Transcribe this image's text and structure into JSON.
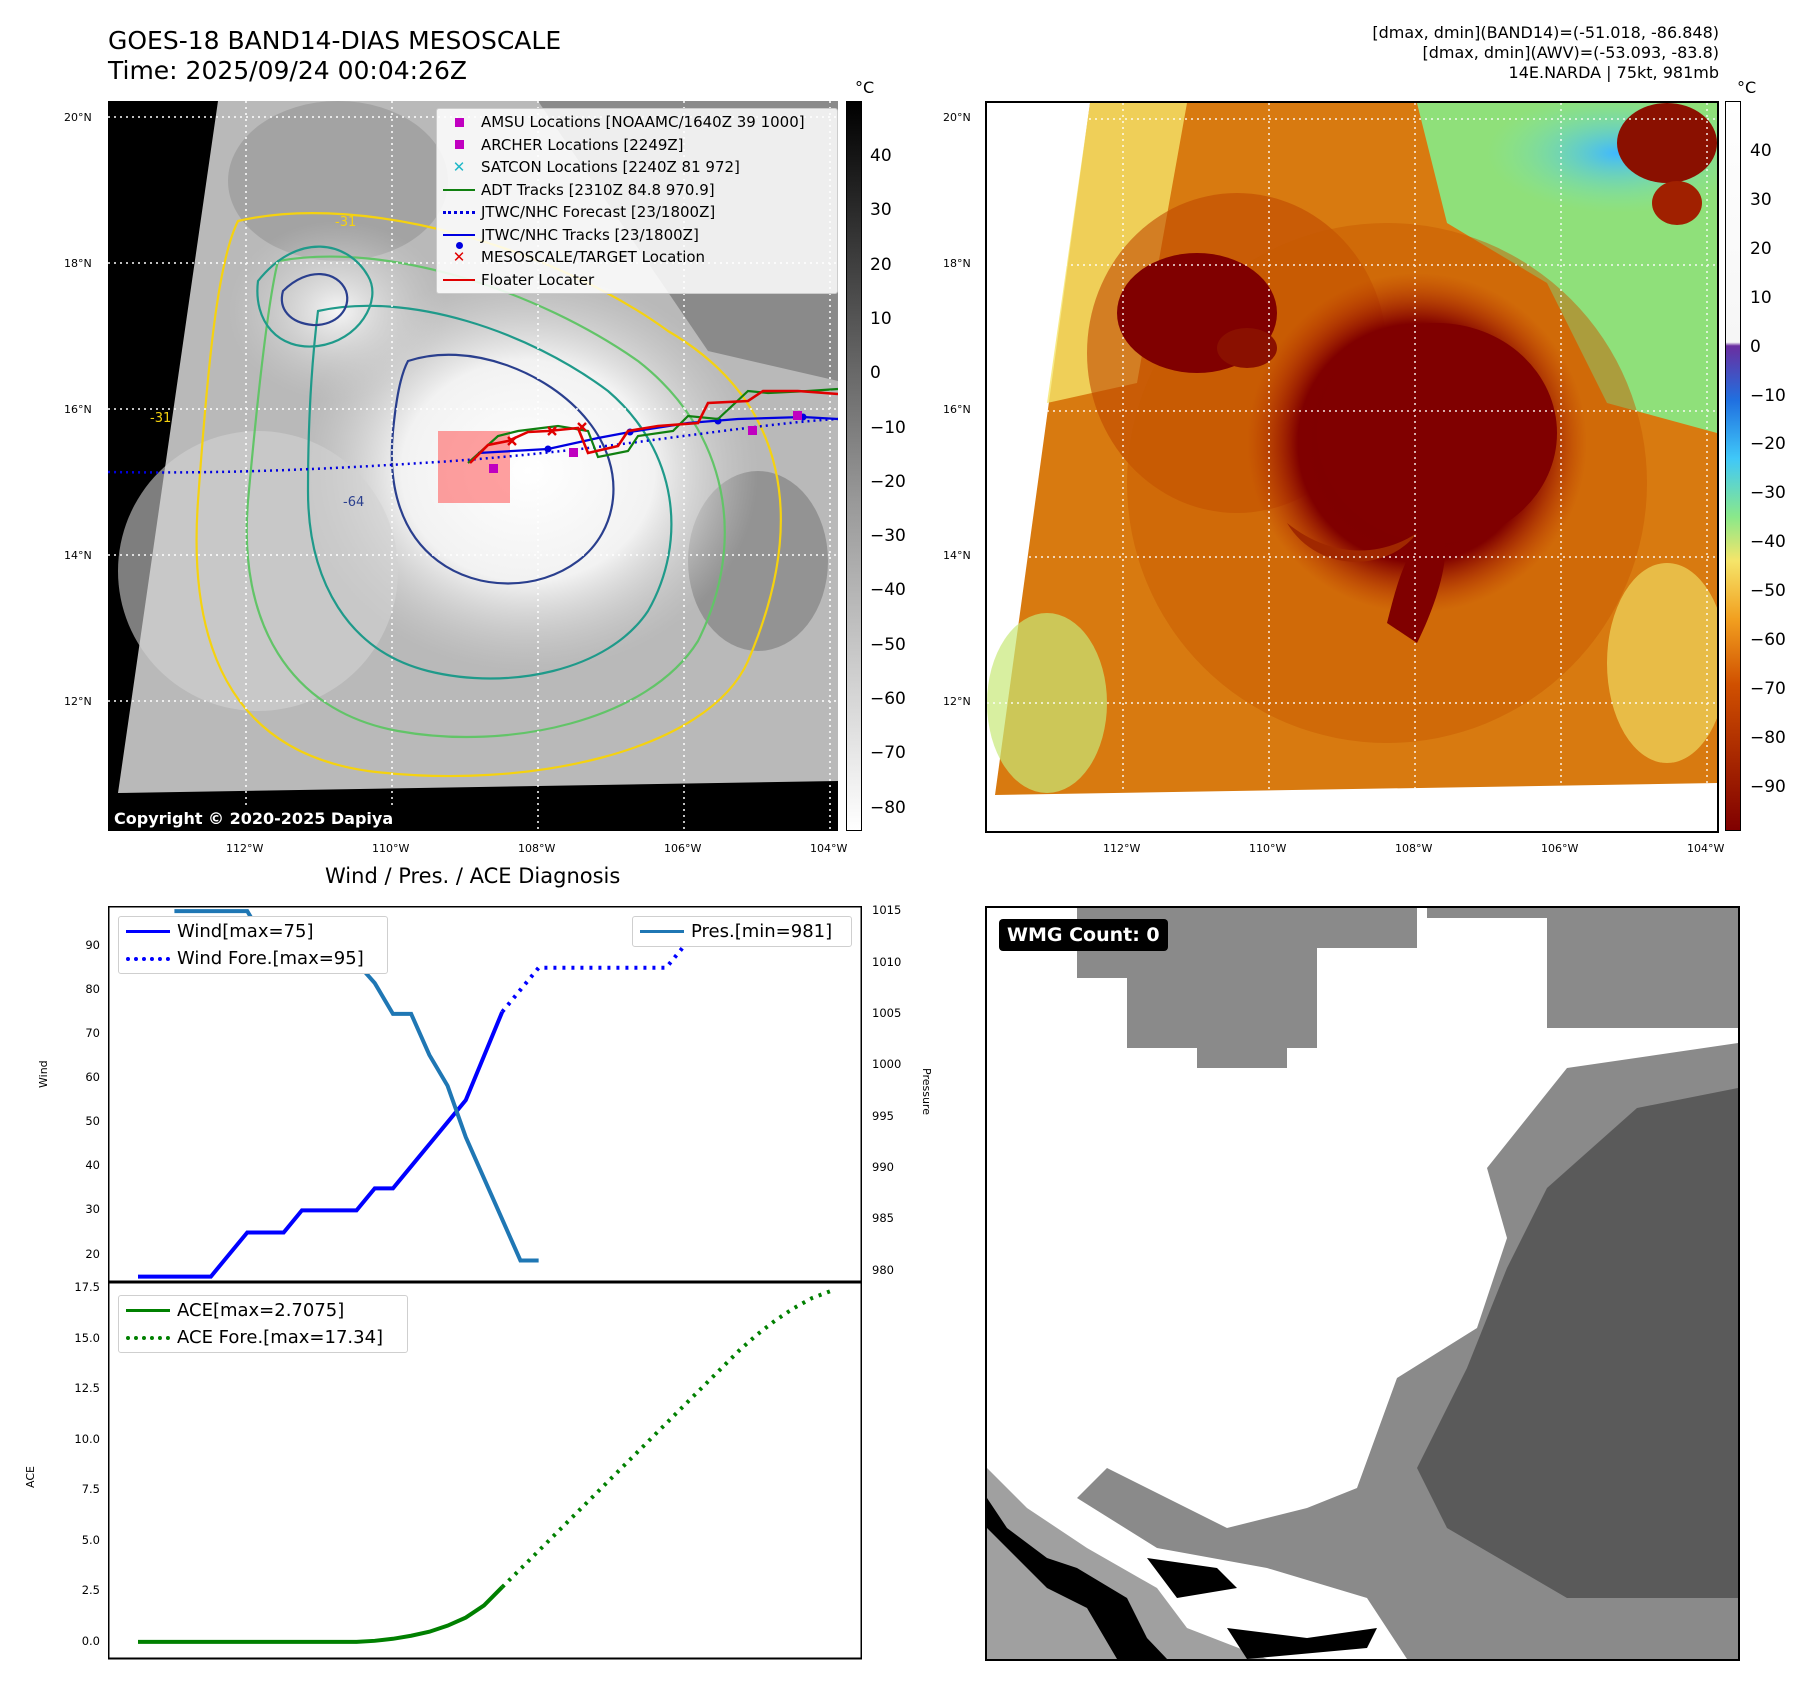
{
  "header": {
    "title_line1": "GOES-18 BAND14-DIAS MESOSCALE",
    "title_line2": "Time: 2025/09/24 00:04:26Z",
    "info_line1": "[dmax, dmin](BAND14)=(-51.018, -86.848)",
    "info_line2": "[dmax, dmin](AWV)=(-53.093, -83.8)",
    "info_line3": "14E.NARDA | 75kt, 981mb"
  },
  "map": {
    "lat_labels": [
      "20°N",
      "18°N",
      "16°N",
      "14°N",
      "12°N"
    ],
    "lon_labels": [
      "112°W",
      "110°W",
      "108°W",
      "106°W",
      "104°W"
    ],
    "copyright": "Copyright © 2020-2025 Dapiya",
    "legend": [
      {
        "label": "AMSU Locations [NOAAMC/1640Z 39 1000]",
        "symbol": "square",
        "color": "#c000c0"
      },
      {
        "label": "ARCHER Locations [2249Z]",
        "symbol": "square",
        "color": "#c000c0"
      },
      {
        "label": "SATCON Locations [2240Z 81 972]",
        "symbol": "x",
        "color": "#20b8c8"
      },
      {
        "label": "ADT Tracks [2310Z 84.8 970.9]",
        "symbol": "line",
        "color": "#108010"
      },
      {
        "label": "JTWC/NHC Forecast [23/1800Z]",
        "symbol": "dotted",
        "color": "#0000e0"
      },
      {
        "label": "JTWC/NHC Tracks [23/1800Z]",
        "symbol": "line-dot",
        "color": "#0000e0"
      },
      {
        "label": "MESOSCALE/TARGET Location",
        "symbol": "x",
        "color": "#e00000"
      },
      {
        "label": "Floater Locater",
        "symbol": "line",
        "color": "#e00000"
      }
    ],
    "contour_labels": [
      "-31",
      "-64",
      "-31"
    ]
  },
  "colorbar_gray": {
    "unit": "°C",
    "ticks": [
      "40",
      "30",
      "20",
      "10",
      "0",
      "−10",
      "−20",
      "−30",
      "−40",
      "−50",
      "−60",
      "−70",
      "−80"
    ]
  },
  "colorbar_color": {
    "unit": "°C",
    "ticks": [
      "40",
      "30",
      "20",
      "10",
      "0",
      "−10",
      "−20",
      "−30",
      "−40",
      "−50",
      "−60",
      "−70",
      "−80",
      "−90"
    ]
  },
  "diag": {
    "title": "Wind / Pres. / ACE Diagnosis",
    "wind_ylabel": "Wind",
    "pres_ylabel": "Pressure",
    "ace_ylabel": "ACE",
    "wind_ticks": [
      "90",
      "80",
      "70",
      "60",
      "50",
      "40",
      "30",
      "20"
    ],
    "pres_ticks": [
      "1015",
      "1010",
      "1005",
      "1000",
      "995",
      "990",
      "985",
      "980"
    ],
    "ace_ticks": [
      "17.5",
      "15.0",
      "12.5",
      "10.0",
      "7.5",
      "5.0",
      "2.5",
      "0.0"
    ],
    "legend_wind": "Wind[max=75]",
    "legend_wind_fore": "Wind Fore.[max=95]",
    "legend_pres": "Pres.[min=981]",
    "legend_ace": "ACE[max=2.7075]",
    "legend_ace_fore": "ACE Fore.[max=17.34]"
  },
  "wmg": {
    "label": "WMG Count: 0"
  },
  "colors": {
    "wind": "#0000ff",
    "pressure": "#1f77b4",
    "ace": "#008000",
    "floater": "#e00000"
  },
  "chart_data": [
    {
      "type": "line",
      "title": "Wind / Pres. / ACE Diagnosis",
      "x": [
        0,
        1,
        2,
        3,
        4,
        5,
        6,
        7,
        8,
        9,
        10,
        11,
        12,
        13,
        14,
        15,
        16,
        17,
        18,
        19,
        20,
        21,
        22,
        23,
        24,
        25,
        26,
        27,
        28,
        29,
        30,
        31,
        32,
        33,
        34,
        35,
        36,
        37,
        38
      ],
      "ylabel": "Wind",
      "ylim": [
        14,
        99
      ],
      "y2label": "Pressure",
      "y2lim": [
        979,
        1015.5
      ],
      "series": [
        {
          "name": "Wind[max=75]",
          "axis": "y",
          "style": "solid",
          "x": [
            0,
            1,
            2,
            3,
            4,
            5,
            6,
            7,
            8,
            9,
            10,
            11,
            12,
            13,
            14,
            15,
            16,
            17,
            18,
            19,
            20
          ],
          "values": [
            15,
            15,
            15,
            15,
            15,
            20,
            25,
            25,
            25,
            30,
            30,
            30,
            30,
            35,
            35,
            40,
            45,
            50,
            55,
            65,
            75
          ]
        },
        {
          "name": "Wind Fore.[max=95]",
          "axis": "y",
          "style": "dotted",
          "x": [
            20,
            21,
            22,
            23,
            24,
            25,
            26,
            27,
            28,
            29,
            30,
            31,
            32,
            33
          ],
          "values": [
            75,
            80,
            85,
            85,
            85,
            85,
            85,
            85,
            85,
            85,
            90,
            95,
            95,
            95
          ]
        },
        {
          "name": "Pres.[min=981]",
          "axis": "y2",
          "style": "solid",
          "x": [
            2,
            3,
            4,
            5,
            6,
            7,
            8,
            9,
            10,
            11,
            12,
            13,
            14,
            15,
            16,
            17,
            18,
            19,
            20,
            21,
            22
          ],
          "values": [
            1015,
            1015,
            1015,
            1015,
            1015,
            1012,
            1010,
            1010,
            1010,
            1010,
            1010,
            1008,
            1005,
            1005,
            1001,
            998,
            993,
            989,
            985,
            981,
            981
          ]
        },
        {
          "name": "",
          "axis": "y2",
          "style": "dotted",
          "x": [
            22,
            23,
            24,
            25,
            26,
            27,
            28,
            29,
            30,
            31,
            32,
            33,
            34,
            35,
            36,
            37,
            38
          ],
          "values": [
            981,
            985,
            989,
            993,
            997,
            1001,
            1005,
            1008,
            1010,
            1012,
            1014,
            1015,
            1013,
            1010,
            1008,
            1007,
            1003
          ]
        }
      ]
    },
    {
      "type": "line",
      "title": "",
      "ylabel": "ACE",
      "ylim": [
        -0.8,
        17.8
      ],
      "xlim": [
        0,
        38
      ],
      "series": [
        {
          "name": "ACE[max=2.7075]",
          "style": "solid",
          "x": [
            0,
            2,
            4,
            6,
            8,
            10,
            12,
            13,
            14,
            15,
            16,
            17,
            18,
            19,
            20
          ],
          "values": [
            0,
            0,
            0,
            0,
            0,
            0,
            0,
            0.05,
            0.15,
            0.3,
            0.5,
            0.8,
            1.2,
            1.8,
            2.7075
          ]
        },
        {
          "name": "ACE Fore.[max=17.34]",
          "style": "dotted",
          "x": [
            20,
            21,
            22,
            23,
            24,
            25,
            26,
            27,
            28,
            29,
            30,
            31,
            32,
            33,
            34,
            35,
            36,
            37,
            38
          ],
          "values": [
            2.7075,
            3.6,
            4.5,
            5.4,
            6.3,
            7.2,
            8.1,
            9.0,
            9.9,
            10.8,
            11.7,
            12.6,
            13.5,
            14.4,
            15.2,
            15.9,
            16.5,
            17.0,
            17.34
          ]
        }
      ]
    }
  ]
}
